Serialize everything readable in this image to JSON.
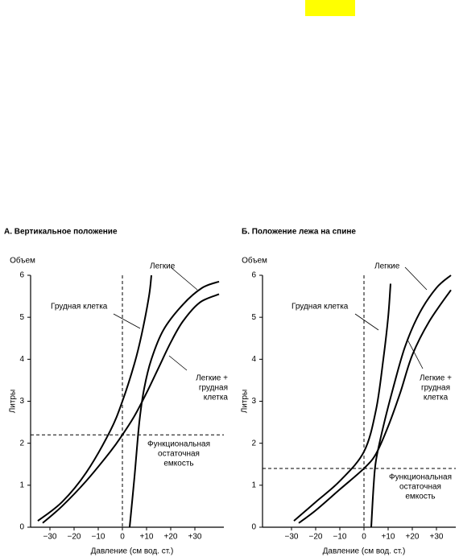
{
  "chart_data": [
    {
      "type": "line",
      "title": "А. Вертикальное положение",
      "y_title": "Объем",
      "y_label": "Литры",
      "x_label": "Давление (см вод. ст.)",
      "xlim": [
        -38,
        42
      ],
      "ylim": [
        0,
        6
      ],
      "xticks": [
        {
          "value": -30,
          "label": "−30"
        },
        {
          "value": -20,
          "label": "−20"
        },
        {
          "value": -10,
          "label": "−10"
        },
        0,
        {
          "value": 10,
          "label": "+10"
        },
        {
          "value": 20,
          "label": "+20"
        },
        {
          "value": 30,
          "label": "+30"
        }
      ],
      "yticks": [
        0,
        1,
        2,
        3,
        4,
        5,
        6
      ],
      "vline": 0,
      "hline": 2.2,
      "hline_label": [
        "Функциональная",
        "остаточная",
        "емкость"
      ],
      "series": [
        {
          "name": [
            "Легкие"
          ],
          "color": "#000000",
          "x": [
            3,
            5,
            7,
            9,
            12,
            17,
            25,
            33,
            40
          ],
          "values": [
            0,
            1.2,
            2.5,
            3.3,
            4.0,
            4.7,
            5.3,
            5.7,
            5.85
          ]
        },
        {
          "name": [
            "Грудная клетка"
          ],
          "color": "#000000",
          "x": [
            -35,
            -25,
            -15,
            -5,
            0,
            5,
            8,
            11,
            12
          ],
          "values": [
            0.15,
            0.6,
            1.3,
            2.3,
            3.0,
            3.9,
            4.6,
            5.5,
            6.0
          ]
        },
        {
          "name": [
            "Легкие +",
            "грудная",
            "клетка"
          ],
          "color": "#000000",
          "x": [
            -33,
            -25,
            -15,
            -5,
            0,
            5,
            10,
            15,
            20,
            25,
            32,
            40
          ],
          "values": [
            0.1,
            0.5,
            1.1,
            1.8,
            2.2,
            2.65,
            3.2,
            3.8,
            4.4,
            4.9,
            5.35,
            5.55
          ]
        }
      ]
    },
    {
      "type": "line",
      "title": "Б. Положение лежа на спине",
      "y_title": "Объем",
      "y_label": "Литры",
      "x_label": "Давление (см вод. ст.)",
      "xlim": [
        -42,
        38
      ],
      "ylim": [
        0,
        6
      ],
      "xticks": [
        {
          "value": -30,
          "label": "−30"
        },
        {
          "value": -20,
          "label": "−20"
        },
        {
          "value": -10,
          "label": "−10"
        },
        0,
        {
          "value": 10,
          "label": "+10"
        },
        {
          "value": 20,
          "label": "+20"
        },
        {
          "value": 30,
          "label": "+30"
        }
      ],
      "yticks": [
        0,
        1,
        2,
        3,
        4,
        5,
        6
      ],
      "vline": 0,
      "hline": 1.4,
      "hline_label": [
        "Функциональная",
        "остаточная",
        "емкость"
      ],
      "series": [
        {
          "name": [
            "Легкие"
          ],
          "color": "#000000",
          "x": [
            3,
            4,
            5,
            8,
            12,
            17,
            23,
            30,
            36
          ],
          "values": [
            0,
            1.0,
            1.6,
            2.4,
            3.3,
            4.3,
            5.1,
            5.7,
            6.0
          ]
        },
        {
          "name": [
            "Грудная клетка"
          ],
          "color": "#000000",
          "x": [
            -29,
            -20,
            -10,
            0,
            5,
            8,
            10,
            11
          ],
          "values": [
            0.15,
            0.6,
            1.1,
            1.8,
            2.8,
            4.0,
            5.0,
            5.8
          ]
        },
        {
          "name": [
            "Легкие +",
            "грудная",
            "клетка"
          ],
          "color": "#000000",
          "x": [
            -27,
            -20,
            -10,
            0,
            5,
            10,
            15,
            20,
            27,
            36
          ],
          "values": [
            0.1,
            0.4,
            0.9,
            1.4,
            1.75,
            2.4,
            3.2,
            4.1,
            4.9,
            5.65
          ]
        }
      ]
    }
  ]
}
